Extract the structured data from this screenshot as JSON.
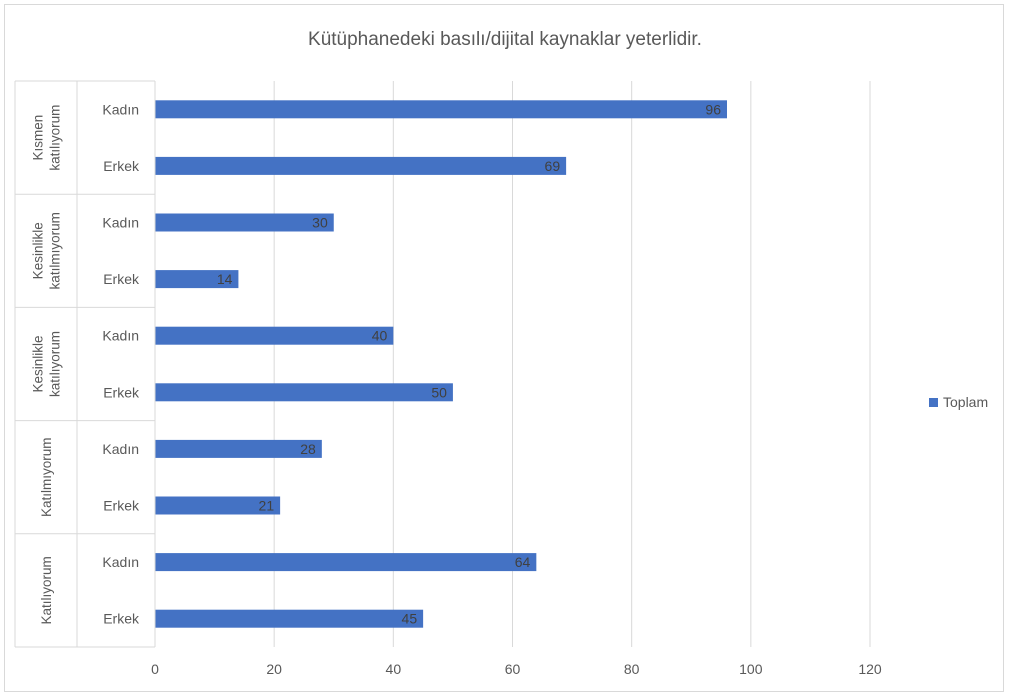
{
  "chart_data": {
    "type": "bar",
    "orientation": "horizontal",
    "title": "Kütüphanedeki basılı/dijital kaynaklar yeterlidir.",
    "xlim": [
      0,
      120
    ],
    "x_ticks": [
      0,
      20,
      40,
      60,
      80,
      100,
      120
    ],
    "grid": true,
    "legend_position": "right",
    "bar_color": "#4472c4",
    "groups": [
      {
        "label_lines": [
          "Kısmen",
          "katılıyorum"
        ],
        "categories": [
          "Kadın",
          "Erkek"
        ]
      },
      {
        "label_lines": [
          "Kesinlikle",
          "katılmıyorum"
        ],
        "categories": [
          "Kadın",
          "Erkek"
        ]
      },
      {
        "label_lines": [
          "Kesinlikle",
          "katılıyorum"
        ],
        "categories": [
          "Kadın",
          "Erkek"
        ]
      },
      {
        "label_lines": [
          "Katılmıyorum"
        ],
        "categories": [
          "Kadın",
          "Erkek"
        ]
      },
      {
        "label_lines": [
          "Katılıyorum"
        ],
        "categories": [
          "Kadın",
          "Erkek"
        ]
      }
    ],
    "series": [
      {
        "name": "Toplam",
        "values": [
          96,
          69,
          30,
          14,
          40,
          50,
          28,
          21,
          64,
          45
        ]
      }
    ]
  }
}
